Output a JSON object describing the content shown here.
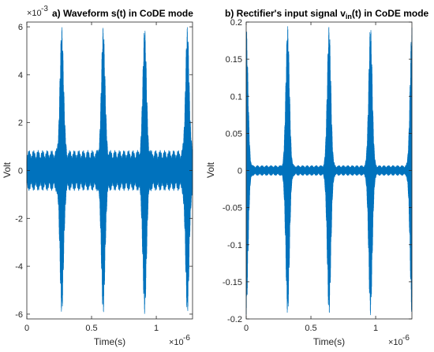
{
  "chart_data": [
    {
      "type": "line",
      "title": "a) Waveform s(t) in CoDE mode",
      "xlabel": "Time(s)",
      "ylabel": "Volt",
      "x_multiplier": "×10",
      "x_exponent": "-6",
      "y_multiplier": "×10",
      "y_exponent": "-3",
      "xlim": [
        0,
        1.28
      ],
      "ylim": [
        -6.2,
        6.2
      ],
      "xticks": [
        0,
        0.5,
        1
      ],
      "yticks": [
        -6,
        -4,
        -2,
        0,
        2,
        4,
        6
      ],
      "x_unit_scale": 1e-06,
      "y_unit_scale": 0.001,
      "series": [
        {
          "color": "#0072bd",
          "baseline_envelope": 0.85,
          "pulse_times": [
            0.27,
            0.59,
            0.91,
            1.24
          ],
          "pulse_peak_max": 6.0,
          "pulse_peak_min": -6.0
        }
      ]
    },
    {
      "type": "line",
      "title_prefix": "b) Rectifier's input signal v",
      "title_sub": "in",
      "title_suffix": "(t) in CoDE mode",
      "xlabel": "Time(s)",
      "ylabel": "Volt",
      "x_multiplier": "×10",
      "x_exponent": "-6",
      "xlim": [
        0,
        1.28
      ],
      "ylim": [
        -0.2,
        0.2
      ],
      "xticks": [
        0,
        0.5,
        1
      ],
      "yticks": [
        -0.2,
        -0.15,
        -0.1,
        -0.05,
        0,
        0.05,
        0.1,
        0.15,
        0.2
      ],
      "ytick_labels": [
        "-0.2",
        "-0.15",
        "-0.1",
        "-0.05",
        "0",
        "0.05",
        "0.1",
        "0.15",
        "0.2"
      ],
      "x_unit_scale": 1e-06,
      "series": [
        {
          "color": "#0072bd",
          "baseline_envelope": 0.007,
          "pulse_times": [
            0.0,
            0.32,
            0.64,
            0.96,
            1.28
          ],
          "pulse_peak_max": 0.195,
          "pulse_peak_min": -0.195
        }
      ]
    }
  ]
}
